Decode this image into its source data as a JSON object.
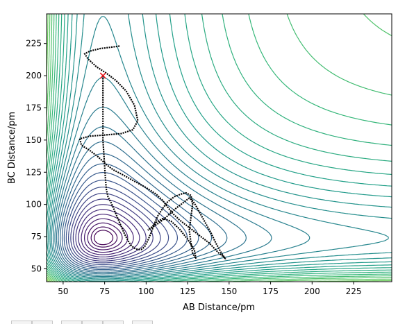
{
  "chart_data": {
    "type": "contour",
    "xlabel": "AB Distance/pm",
    "ylabel": "BC Distance/pm",
    "xlim": [
      40,
      248
    ],
    "ylim": [
      40,
      248
    ],
    "xticks": [
      50,
      75,
      100,
      125,
      150,
      175,
      200,
      225
    ],
    "yticks": [
      50,
      75,
      100,
      125,
      150,
      175,
      200,
      225
    ],
    "colormap": "viridis",
    "contour_levels": 40,
    "grid": false,
    "start_marker": {
      "x": 74,
      "y": 200,
      "symbol": "x",
      "color": "#e8141a"
    },
    "trajectory": {
      "color": "#000000",
      "points": [
        [
          74,
          200
        ],
        [
          74,
          188
        ],
        [
          74,
          175
        ],
        [
          74,
          160
        ],
        [
          74,
          150
        ],
        [
          74.5,
          140
        ],
        [
          75,
          130
        ],
        [
          75.5,
          120
        ],
        [
          76,
          112
        ],
        [
          77,
          106
        ],
        [
          79,
          101
        ],
        [
          81,
          95
        ],
        [
          83,
          89
        ],
        [
          85,
          83
        ],
        [
          87,
          77
        ],
        [
          89,
          72
        ],
        [
          91,
          68
        ],
        [
          93,
          66
        ],
        [
          95,
          65
        ],
        [
          97,
          65
        ],
        [
          99,
          67
        ],
        [
          101,
          72
        ],
        [
          103,
          78
        ],
        [
          105,
          85
        ],
        [
          107,
          91
        ],
        [
          110,
          97
        ],
        [
          113,
          102
        ],
        [
          117,
          106
        ],
        [
          121,
          108
        ],
        [
          124,
          109
        ],
        [
          127,
          107
        ],
        [
          128,
          100
        ],
        [
          127,
          90
        ],
        [
          126,
          80
        ],
        [
          127,
          70
        ],
        [
          128,
          62
        ],
        [
          130,
          58
        ],
        [
          129,
          65
        ],
        [
          125,
          73
        ],
        [
          120,
          81
        ],
        [
          115,
          87
        ],
        [
          110,
          89
        ],
        [
          106,
          86
        ],
        [
          103,
          82
        ],
        [
          101,
          80
        ],
        [
          107,
          85
        ],
        [
          112,
          90
        ],
        [
          117,
          96
        ],
        [
          122,
          101
        ],
        [
          126,
          105
        ],
        [
          128,
          103
        ],
        [
          130,
          99
        ],
        [
          133,
          92
        ],
        [
          136,
          85
        ],
        [
          139,
          78
        ],
        [
          142,
          70
        ],
        [
          145,
          63
        ],
        [
          148,
          57
        ]
      ],
      "overlay": [
        [
          84,
          223
        ],
        [
          78,
          222
        ],
        [
          72,
          221
        ],
        [
          66,
          219
        ],
        [
          63,
          217
        ],
        [
          65,
          213
        ],
        [
          70,
          207
        ],
        [
          76,
          202
        ],
        [
          82,
          196
        ],
        [
          88,
          188
        ],
        [
          93,
          177
        ],
        [
          95,
          165
        ],
        [
          92,
          158
        ],
        [
          85,
          155
        ],
        [
          76,
          154
        ],
        [
          66,
          153
        ],
        [
          60,
          151
        ],
        [
          61,
          146
        ],
        [
          66,
          142
        ],
        [
          71,
          137
        ],
        [
          76,
          131
        ],
        [
          80,
          127
        ],
        [
          86,
          123
        ],
        [
          93,
          118
        ],
        [
          100,
          113
        ],
        [
          106,
          108
        ],
        [
          110,
          103
        ],
        [
          113,
          98
        ],
        [
          116,
          93
        ],
        [
          120,
          88
        ],
        [
          124,
          84
        ],
        [
          129,
          79
        ],
        [
          134,
          74
        ],
        [
          138,
          70
        ],
        [
          141,
          66
        ],
        [
          144,
          62
        ],
        [
          148,
          58
        ]
      ]
    }
  },
  "toolbar": {
    "buttons": [
      "",
      "",
      "",
      "",
      "",
      "",
      ""
    ]
  }
}
